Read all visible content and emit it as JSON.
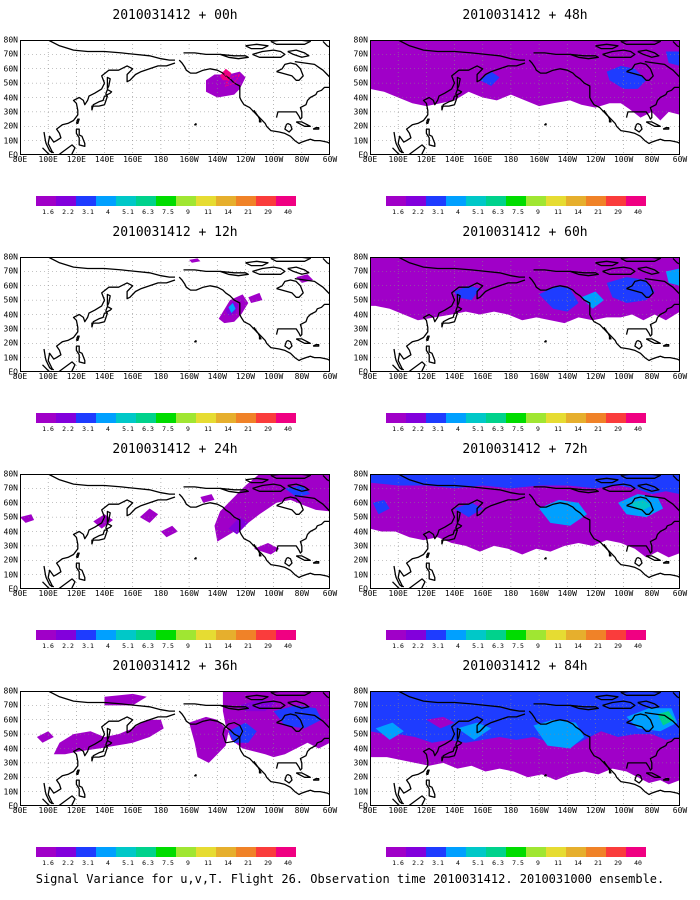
{
  "panels": [
    {
      "title": "2010031412 + 00h"
    },
    {
      "title": "2010031412 + 48h"
    },
    {
      "title": "2010031412 + 12h"
    },
    {
      "title": "2010031412 + 60h"
    },
    {
      "title": "2010031412 + 24h"
    },
    {
      "title": "2010031412 + 72h"
    },
    {
      "title": "2010031412 + 36h"
    },
    {
      "title": "2010031412 + 84h"
    }
  ],
  "map": {
    "region": "North Pacific / North America",
    "lon_labels": [
      "80E",
      "100E",
      "120E",
      "140E",
      "160E",
      "180",
      "160W",
      "140W",
      "120W",
      "100W",
      "80W",
      "60W"
    ],
    "lat_labels": [
      "80N",
      "70N",
      "60N",
      "50N",
      "40N",
      "30N",
      "20N",
      "10N",
      "EQ"
    ],
    "gridlines": "dotted"
  },
  "colorbar": {
    "labels": [
      "1.6",
      "2.2",
      "3.1",
      "4",
      "5.1",
      "6.3",
      "7.5",
      "9",
      "11",
      "14",
      "21",
      "29",
      "40"
    ],
    "colors": [
      "#a000c8",
      "#8200dc",
      "#1e3cff",
      "#00a0ff",
      "#00c8c8",
      "#00d28c",
      "#00dc00",
      "#a0e632",
      "#e6dc32",
      "#e6af2d",
      "#f08228",
      "#fa3c3c",
      "#f00082"
    ]
  },
  "caption": "Signal Variance for u,v,T. Flight 26. Observation time 2010031412. 2010031000 ensemble."
}
